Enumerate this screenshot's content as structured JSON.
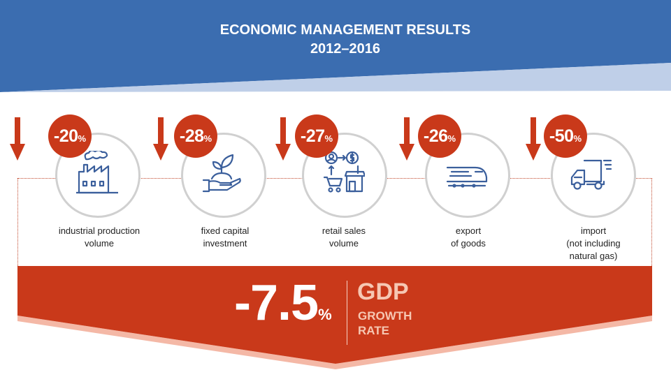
{
  "header": {
    "title_line1": "ECONOMIC MANAGEMENT RESULTS",
    "title_line2": "2012–2016"
  },
  "colors": {
    "header_blue": "#3b6db0",
    "header_light_blue": "#bfcfe8",
    "accent_red": "#c9391a",
    "circle_border": "#d0d0d0",
    "icon_blue": "#3b5f9c"
  },
  "indicators": [
    {
      "value": "-20",
      "unit": "%",
      "label_lines": [
        "industrial production",
        "volume"
      ],
      "icon": "factory-icon",
      "trend": "down"
    },
    {
      "value": "-28",
      "unit": "%",
      "label_lines": [
        "fixed capital",
        "investment"
      ],
      "icon": "hand-plant-icon",
      "trend": "down"
    },
    {
      "value": "-27",
      "unit": "%",
      "label_lines": [
        "retail sales",
        "volume"
      ],
      "icon": "retail-shop-icon",
      "trend": "down"
    },
    {
      "value": "-26",
      "unit": "%",
      "label_lines": [
        "export",
        "of goods"
      ],
      "icon": "train-icon",
      "trend": "down"
    },
    {
      "value": "-50",
      "unit": "%",
      "label_lines": [
        "import",
        "(not including",
        "natural gas)"
      ],
      "icon": "delivery-truck-icon",
      "trend": "down"
    }
  ],
  "gdp": {
    "value": "-7.5",
    "unit": "%",
    "word": "GDP",
    "sub_lines": [
      "GROWTH",
      "RATE"
    ]
  }
}
